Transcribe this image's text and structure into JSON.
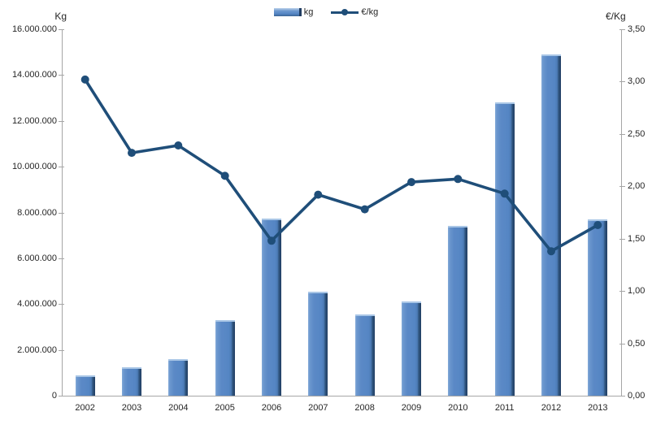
{
  "chart": {
    "left_axis_title": "Kg",
    "right_axis_title": "€/Kg",
    "legend_kg": "kg",
    "legend_eurkg": "€/kg"
  },
  "chart_data": {
    "type": "bar+line combo",
    "categories": [
      "2002",
      "2003",
      "2004",
      "2005",
      "2006",
      "2007",
      "2008",
      "2009",
      "2010",
      "2011",
      "2012",
      "2013"
    ],
    "series": [
      {
        "name": "kg",
        "type": "bar",
        "axis": "left",
        "values": [
          900000,
          1250000,
          1600000,
          3300000,
          7750000,
          4550000,
          3550000,
          4100000,
          7400000,
          12800000,
          14900000,
          7700000
        ]
      },
      {
        "name": "€/kg",
        "type": "line",
        "axis": "right",
        "values": [
          3.02,
          2.32,
          2.39,
          2.1,
          1.48,
          1.92,
          1.78,
          2.04,
          2.07,
          1.93,
          1.38,
          1.63
        ]
      }
    ],
    "left_axis": {
      "title": "Kg",
      "min": 0,
      "max": 16000000,
      "step": 2000000,
      "tick_labels_top_to_bottom": [
        "16.000.000",
        "14.000.000",
        "12.000.000",
        "10.000.000",
        "8.000.000",
        "6.000.000",
        "4.000.000",
        "2.000.000",
        "0"
      ]
    },
    "right_axis": {
      "title": "€/Kg",
      "min": 0,
      "max": 3.5,
      "step": 0.5,
      "tick_labels_top_to_bottom": [
        "3,50",
        "3,00",
        "2,50",
        "2,00",
        "1,50",
        "1,00",
        "0,50",
        "0,00"
      ]
    },
    "grid": false,
    "legend_position": "top-center",
    "colors": {
      "bar_fill": "#5586c4",
      "bar_edge_dark": "#203d62",
      "bar_highlight": "#a9c6e6",
      "line": "#1f4e79",
      "axis": "#a6a6a6",
      "text": "#262626"
    }
  }
}
